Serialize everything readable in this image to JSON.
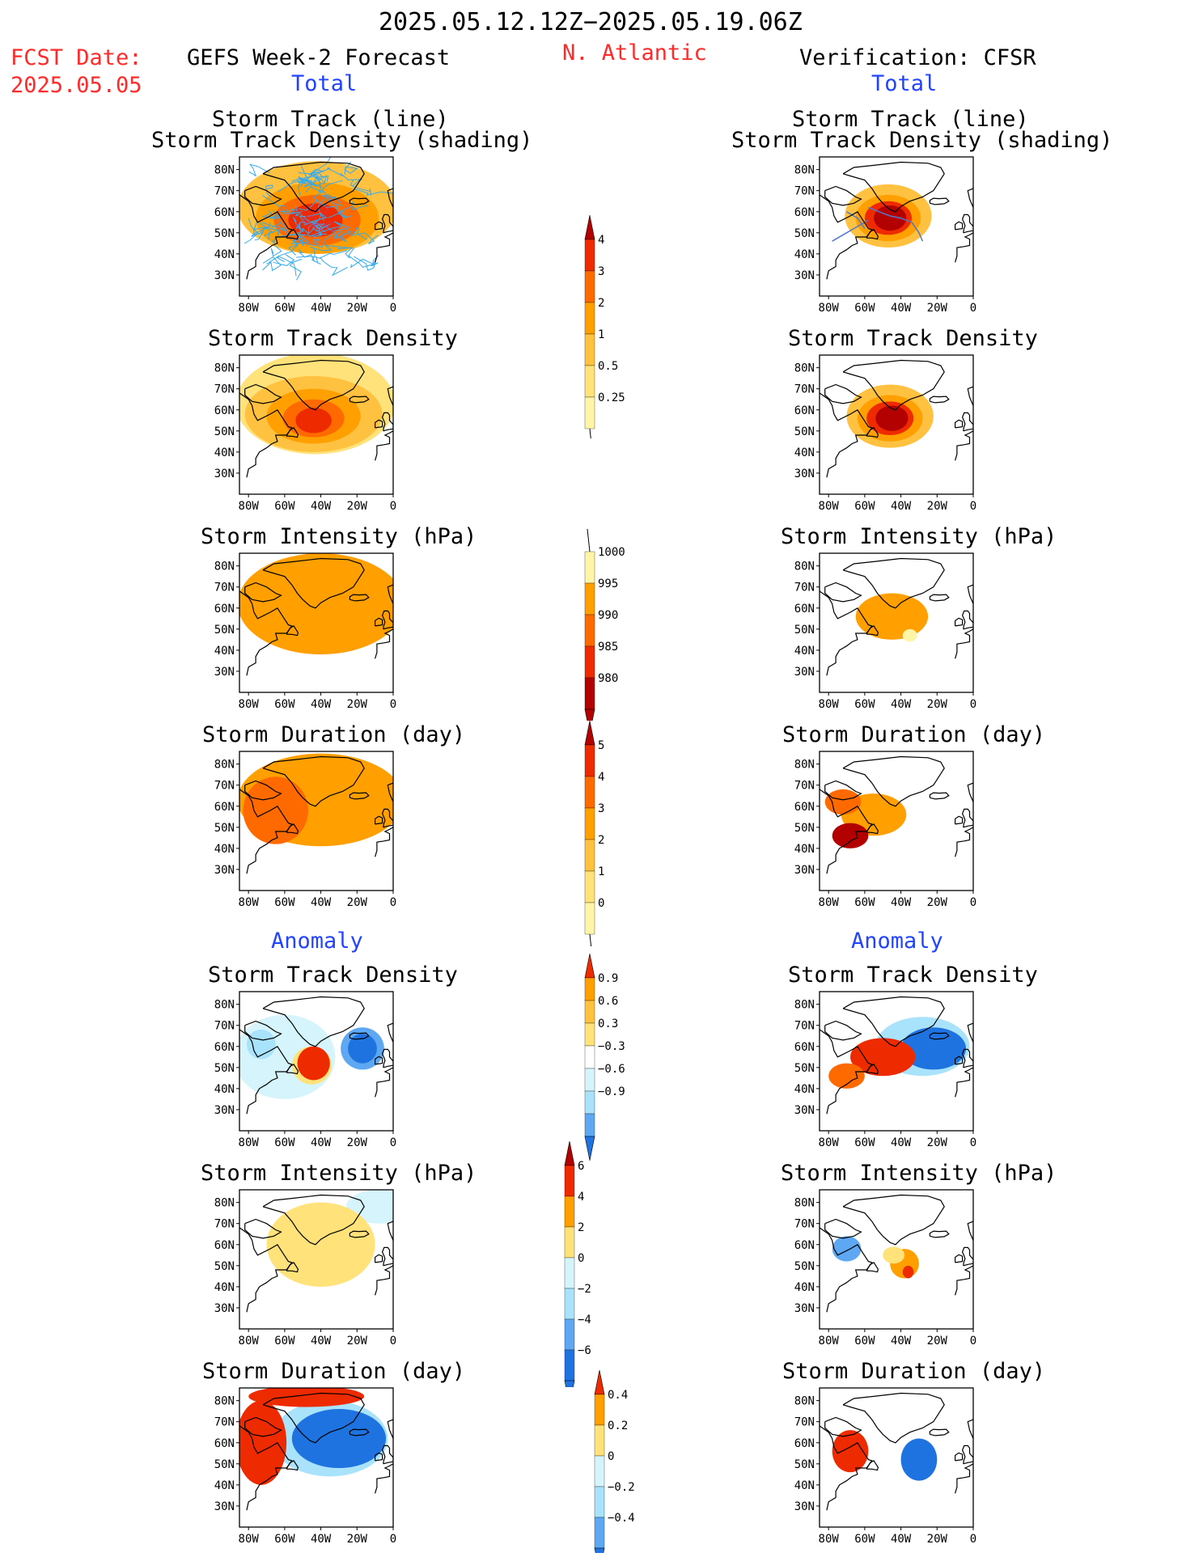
{
  "header": {
    "period": "2025.05.12.12Z−2025.05.19.06Z",
    "fcst_label": "FCST Date:",
    "fcst_date": "2025.05.05",
    "model": "GEFS Week-2 Forecast",
    "region": "N. Atlantic",
    "verification": "Verification: CFSR"
  },
  "sections": {
    "total_left": "Total",
    "total_right": "Total",
    "anomaly_left": "Anomaly",
    "anomaly_right": "Anomaly"
  },
  "panel_titles": {
    "track_line": "Storm Track (line)",
    "track_shading": "Storm Track Density (shading)",
    "density": "Storm Track Density",
    "intensity": "Storm Intensity (hPa)",
    "duration": "Storm Duration (day)"
  },
  "map_axes": {
    "lat_labels": [
      "80N",
      "70N",
      "60N",
      "50N",
      "40N",
      "30N"
    ],
    "lon_labels": [
      "80W",
      "60W",
      "40W",
      "20W",
      "0"
    ]
  },
  "colorbars": {
    "density": [
      "4",
      "3",
      "2",
      "1",
      "0.5",
      "0.25"
    ],
    "intensity": [
      "1000",
      "995",
      "990",
      "985",
      "980"
    ],
    "duration": [
      "5",
      "4",
      "3",
      "2",
      "1",
      "0"
    ],
    "anom_density": [
      "0.9",
      "0.6",
      "0.3",
      "−0.3",
      "−0.6",
      "−0.9"
    ],
    "anom_intensity": [
      "6",
      "4",
      "2",
      "0",
      "−2",
      "−4",
      "−6"
    ],
    "anom_duration": [
      "0.4",
      "0.2",
      "0",
      "−0.2",
      "−0.4"
    ]
  },
  "colors": {
    "pale_yellow": "#fff5a8",
    "yellow": "#ffe27a",
    "light_orange": "#ffc13f",
    "orange": "#ffa000",
    "dark_orange": "#ff6a00",
    "red": "#ee2b00",
    "dark_red": "#b30000",
    "very_light_blue": "#d6f4fb",
    "light_blue": "#a9e2fb",
    "mid_blue": "#5ea7f2",
    "blue": "#1f73e0",
    "track_blue": "#33aaee",
    "title_red": "#ff2a2a",
    "section_blue": "#2244ff"
  }
}
